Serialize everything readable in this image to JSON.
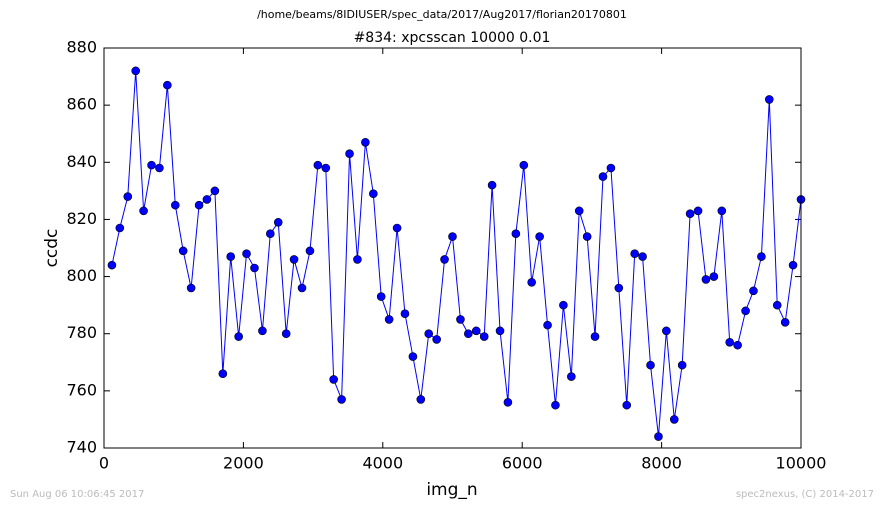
{
  "chart_data": {
    "type": "line",
    "suptitle": "/home/beams/8IDIUSER/spec_data/2017/Aug2017/florian20170801",
    "title": "#834: xpcsscan 10000 0.01",
    "x_label": "img_n",
    "y_label": "ccdc",
    "footer_left": "Sun Aug 06 10:06:45 2017",
    "footer_right": "spec2nexus, (C) 2014-2017",
    "x": [
      114,
      227,
      341,
      455,
      568,
      682,
      795,
      909,
      1023,
      1136,
      1250,
      1364,
      1477,
      1591,
      1705,
      1818,
      1932,
      2045,
      2159,
      2273,
      2386,
      2500,
      2614,
      2727,
      2841,
      2955,
      3068,
      3182,
      3295,
      3409,
      3523,
      3636,
      3750,
      3864,
      3977,
      4091,
      4205,
      4318,
      4432,
      4545,
      4659,
      4773,
      4886,
      5000,
      5114,
      5227,
      5341,
      5455,
      5568,
      5682,
      5795,
      5909,
      6023,
      6136,
      6250,
      6364,
      6477,
      6591,
      6705,
      6818,
      6932,
      7045,
      7159,
      7273,
      7386,
      7500,
      7614,
      7727,
      7841,
      7955,
      8068,
      8182,
      8295,
      8409,
      8523,
      8636,
      8750,
      8864,
      8977,
      9091,
      9205,
      9318,
      9432,
      9545,
      9659,
      9773,
      9886,
      10000
    ],
    "series": [
      {
        "color": "#0000ff",
        "values": [
          804,
          817,
          828,
          872,
          823,
          839,
          838,
          867,
          825,
          809,
          796,
          825,
          827,
          830,
          766,
          807,
          779,
          808,
          803,
          781,
          815,
          819,
          780,
          806,
          796,
          809,
          839,
          838,
          764,
          757,
          843,
          806,
          847,
          829,
          793,
          785,
          817,
          787,
          772,
          757,
          780,
          778,
          806,
          814,
          785,
          780,
          781,
          779,
          832,
          781,
          756,
          815,
          839,
          798,
          814,
          783,
          755,
          790,
          765,
          823,
          814,
          779,
          835,
          838,
          796,
          755,
          808,
          807,
          769,
          744,
          781,
          750,
          769,
          822,
          823,
          799,
          800,
          823,
          777,
          776,
          788,
          795,
          807,
          862,
          790,
          784,
          804,
          827
        ]
      }
    ],
    "xlim": [
      0,
      10000
    ],
    "xticks": [
      0,
      2000,
      4000,
      6000,
      8000,
      10000
    ],
    "ylim": [
      740,
      880
    ],
    "yticks": [
      740,
      760,
      780,
      800,
      820,
      840,
      860,
      880
    ]
  }
}
